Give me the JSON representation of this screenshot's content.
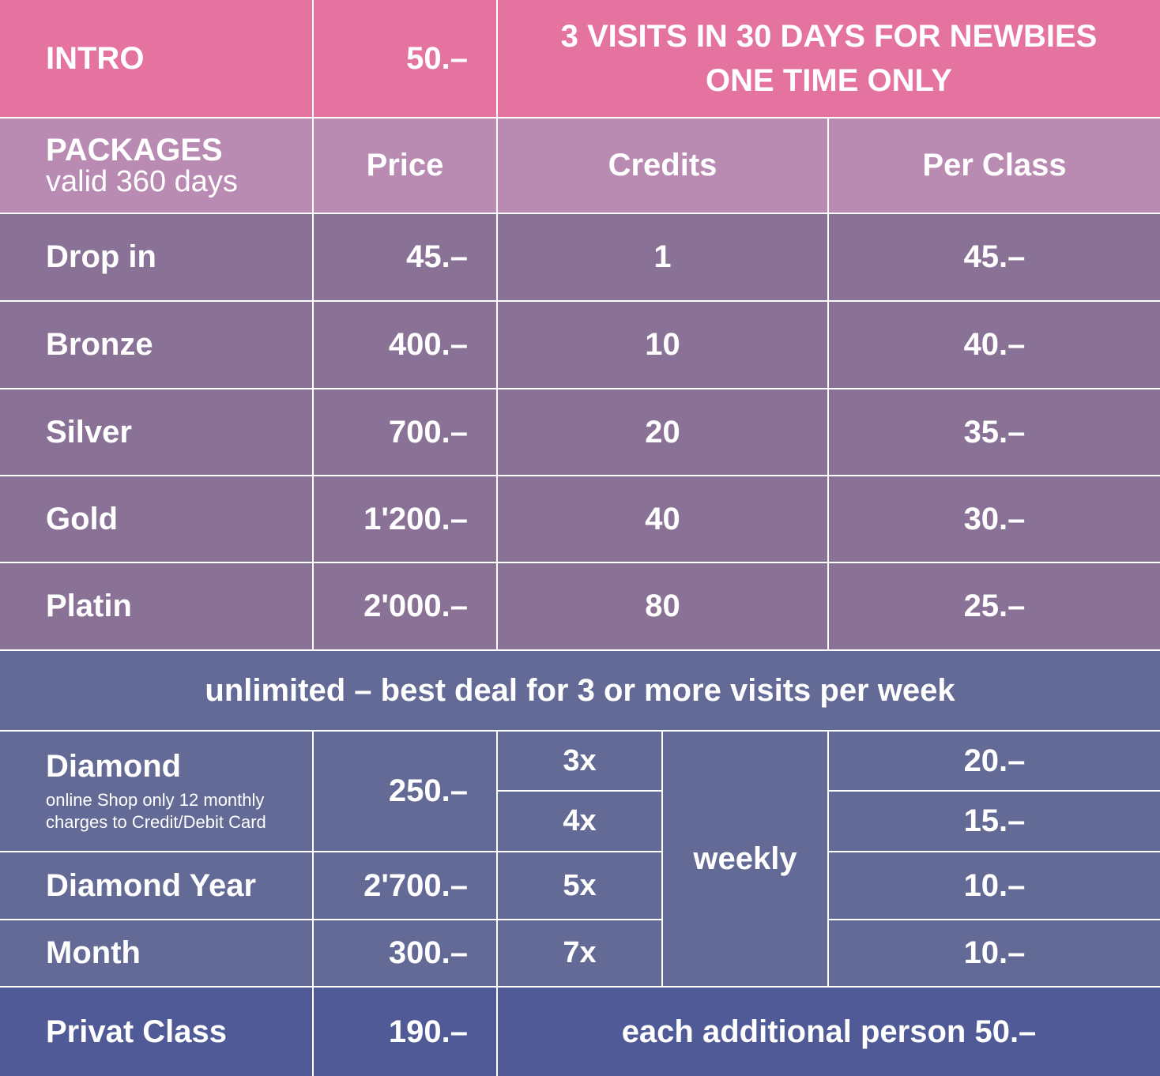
{
  "intro": {
    "label": "INTRO",
    "price": "50.–",
    "note_line1": "3 VISITS IN 30 DAYS FOR NEWBIES",
    "note_line2": "ONE TIME ONLY"
  },
  "header": {
    "packages": "PACKAGES",
    "validity": "valid 360 days",
    "price": "Price",
    "credits": "Credits",
    "per_class": "Per Class"
  },
  "packages": [
    {
      "name": "Drop in",
      "price": "45.–",
      "credits": "1",
      "per_class": "45.–"
    },
    {
      "name": "Bronze",
      "price": "400.–",
      "credits": "10",
      "per_class": "40.–"
    },
    {
      "name": "Silver",
      "price": "700.–",
      "credits": "20",
      "per_class": "35.–"
    },
    {
      "name": "Gold",
      "price": "1'200.–",
      "credits": "40",
      "per_class": "30.–"
    },
    {
      "name": "Platin",
      "price": "2'000.–",
      "credits": "80",
      "per_class": "25.–"
    }
  ],
  "unlimited": {
    "banner": "unlimited – best deal for 3 or more visits per week",
    "frequency": "weekly",
    "diamond": {
      "name": "Diamond",
      "note_line1": "online Shop only 12 monthly",
      "note_line2": "charges to Credit/Debit Card",
      "price": "250.–"
    },
    "diamond_year": {
      "name": "Diamond Year",
      "price": "2'700.–"
    },
    "month": {
      "name": "Month",
      "price": "300.–"
    },
    "visits": [
      "3x",
      "4x",
      "5x",
      "7x"
    ],
    "per_class": [
      "20.–",
      "15.–",
      "10.–",
      "10.–"
    ]
  },
  "privat": {
    "name": "Privat Class",
    "price": "190.–",
    "note": "each additional person 50.–"
  },
  "colors": {
    "intro": "#e4739f",
    "header": "#b98bb2",
    "packages": "#8a7196",
    "unlimited": "#636a95",
    "privat": "#4f5a96"
  }
}
